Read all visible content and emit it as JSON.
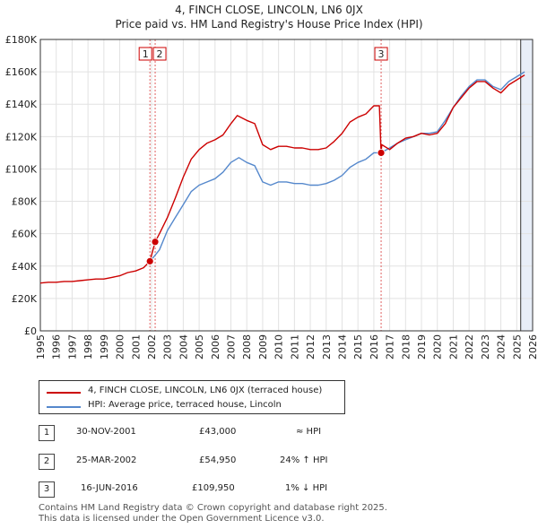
{
  "title": "4, FINCH CLOSE, LINCOLN, LN6 0JX",
  "subtitle": "Price paid vs. HM Land Registry's House Price Index (HPI)",
  "chart_data": {
    "type": "line",
    "xlim": [
      1995,
      2026
    ],
    "ylim": [
      0,
      180000
    ],
    "x_ticks": [
      "1995",
      "1996",
      "1997",
      "1998",
      "1999",
      "2000",
      "2001",
      "2002",
      "2003",
      "2004",
      "2005",
      "2006",
      "2007",
      "2008",
      "2009",
      "2010",
      "2011",
      "2012",
      "2013",
      "2014",
      "2015",
      "2016",
      "2017",
      "2018",
      "2019",
      "2020",
      "2021",
      "2022",
      "2023",
      "2024",
      "2025",
      "2026"
    ],
    "y_ticks": [
      {
        "value": 0,
        "label": "£0"
      },
      {
        "value": 20000,
        "label": "£20K"
      },
      {
        "value": 40000,
        "label": "£40K"
      },
      {
        "value": 60000,
        "label": "£60K"
      },
      {
        "value": 80000,
        "label": "£80K"
      },
      {
        "value": 100000,
        "label": "£100K"
      },
      {
        "value": 120000,
        "label": "£120K"
      },
      {
        "value": 140000,
        "label": "£140K"
      },
      {
        "value": 160000,
        "label": "£160K"
      },
      {
        "value": 180000,
        "label": "£180K"
      }
    ],
    "series": [
      {
        "name": "4, FINCH CLOSE, LINCOLN, LN6 0JX (terraced house)",
        "color": "#cc0000",
        "points": [
          [
            1995.0,
            29500
          ],
          [
            1995.5,
            30000
          ],
          [
            1996.0,
            30000
          ],
          [
            1996.5,
            30500
          ],
          [
            1997.0,
            30500
          ],
          [
            1997.5,
            31000
          ],
          [
            1998.0,
            31500
          ],
          [
            1998.5,
            32000
          ],
          [
            1999.0,
            32000
          ],
          [
            1999.5,
            33000
          ],
          [
            2000.0,
            34000
          ],
          [
            2000.5,
            36000
          ],
          [
            2001.0,
            37000
          ],
          [
            2001.5,
            39000
          ],
          [
            2001.9,
            43000
          ],
          [
            2002.23,
            54950
          ],
          [
            2002.5,
            60000
          ],
          [
            2003.0,
            70000
          ],
          [
            2003.5,
            82000
          ],
          [
            2004.0,
            95000
          ],
          [
            2004.5,
            106000
          ],
          [
            2005.0,
            112000
          ],
          [
            2005.5,
            116000
          ],
          [
            2006.0,
            118000
          ],
          [
            2006.5,
            121000
          ],
          [
            2007.0,
            128000
          ],
          [
            2007.4,
            133000
          ],
          [
            2008.0,
            130000
          ],
          [
            2008.5,
            128000
          ],
          [
            2009.0,
            115000
          ],
          [
            2009.5,
            112000
          ],
          [
            2010.0,
            114000
          ],
          [
            2010.5,
            114000
          ],
          [
            2011.0,
            113000
          ],
          [
            2011.5,
            113000
          ],
          [
            2012.0,
            112000
          ],
          [
            2012.5,
            112000
          ],
          [
            2013.0,
            113000
          ],
          [
            2013.5,
            117000
          ],
          [
            2014.0,
            122000
          ],
          [
            2014.5,
            129000
          ],
          [
            2015.0,
            132000
          ],
          [
            2015.5,
            134000
          ],
          [
            2016.0,
            139000
          ],
          [
            2016.35,
            139000
          ],
          [
            2016.46,
            109950
          ],
          [
            2016.5,
            115000
          ],
          [
            2017.0,
            112000
          ],
          [
            2017.5,
            116000
          ],
          [
            2018.0,
            119000
          ],
          [
            2018.5,
            120000
          ],
          [
            2019.0,
            122000
          ],
          [
            2019.5,
            121000
          ],
          [
            2020.0,
            122000
          ],
          [
            2020.5,
            128000
          ],
          [
            2021.0,
            138000
          ],
          [
            2021.5,
            144000
          ],
          [
            2022.0,
            150000
          ],
          [
            2022.5,
            154000
          ],
          [
            2023.0,
            154000
          ],
          [
            2023.5,
            150000
          ],
          [
            2024.0,
            147000
          ],
          [
            2024.5,
            152000
          ],
          [
            2025.0,
            155000
          ],
          [
            2025.5,
            158000
          ]
        ]
      },
      {
        "name": "HPI: Average price, terraced house, Lincoln",
        "color": "#5588cc",
        "points": [
          [
            2001.9,
            43000
          ],
          [
            2002.0,
            44000
          ],
          [
            2002.5,
            50000
          ],
          [
            2003.0,
            62000
          ],
          [
            2003.5,
            70000
          ],
          [
            2004.0,
            78000
          ],
          [
            2004.5,
            86000
          ],
          [
            2005.0,
            90000
          ],
          [
            2005.5,
            92000
          ],
          [
            2006.0,
            94000
          ],
          [
            2006.5,
            98000
          ],
          [
            2007.0,
            104000
          ],
          [
            2007.5,
            107000
          ],
          [
            2008.0,
            104000
          ],
          [
            2008.5,
            102000
          ],
          [
            2009.0,
            92000
          ],
          [
            2009.5,
            90000
          ],
          [
            2010.0,
            92000
          ],
          [
            2010.5,
            92000
          ],
          [
            2011.0,
            91000
          ],
          [
            2011.5,
            91000
          ],
          [
            2012.0,
            90000
          ],
          [
            2012.5,
            90000
          ],
          [
            2013.0,
            91000
          ],
          [
            2013.5,
            93000
          ],
          [
            2014.0,
            96000
          ],
          [
            2014.5,
            101000
          ],
          [
            2015.0,
            104000
          ],
          [
            2015.5,
            106000
          ],
          [
            2016.0,
            110000
          ],
          [
            2016.46,
            110000
          ],
          [
            2017.0,
            113000
          ],
          [
            2017.5,
            116000
          ],
          [
            2018.0,
            118000
          ],
          [
            2018.5,
            120000
          ],
          [
            2019.0,
            122000
          ],
          [
            2019.5,
            122000
          ],
          [
            2020.0,
            123000
          ],
          [
            2020.5,
            130000
          ],
          [
            2021.0,
            138000
          ],
          [
            2021.5,
            145000
          ],
          [
            2022.0,
            151000
          ],
          [
            2022.5,
            155000
          ],
          [
            2023.0,
            155000
          ],
          [
            2023.5,
            151000
          ],
          [
            2024.0,
            149000
          ],
          [
            2024.5,
            154000
          ],
          [
            2025.0,
            157000
          ],
          [
            2025.5,
            160000
          ]
        ]
      }
    ],
    "sales": [
      {
        "id": "1",
        "x": 2001.9,
        "y": 43000
      },
      {
        "id": "2",
        "x": 2002.23,
        "y": 54950
      },
      {
        "id": "3",
        "x": 2016.46,
        "y": 109950
      }
    ],
    "shaded_region_from": 2025.25
  },
  "transactions": [
    {
      "id": "1",
      "date": "30-NOV-2001",
      "price": "£43,000",
      "hpi": "≈ HPI"
    },
    {
      "id": "2",
      "date": "25-MAR-2002",
      "price": "£54,950",
      "hpi": "24% ↑ HPI"
    },
    {
      "id": "3",
      "date": "16-JUN-2016",
      "price": "£109,950",
      "hpi": "1% ↓ HPI"
    }
  ],
  "footer": {
    "line1": "Contains HM Land Registry data © Crown copyright and database right 2025.",
    "line2": "This data is licensed under the Open Government Licence v3.0."
  }
}
